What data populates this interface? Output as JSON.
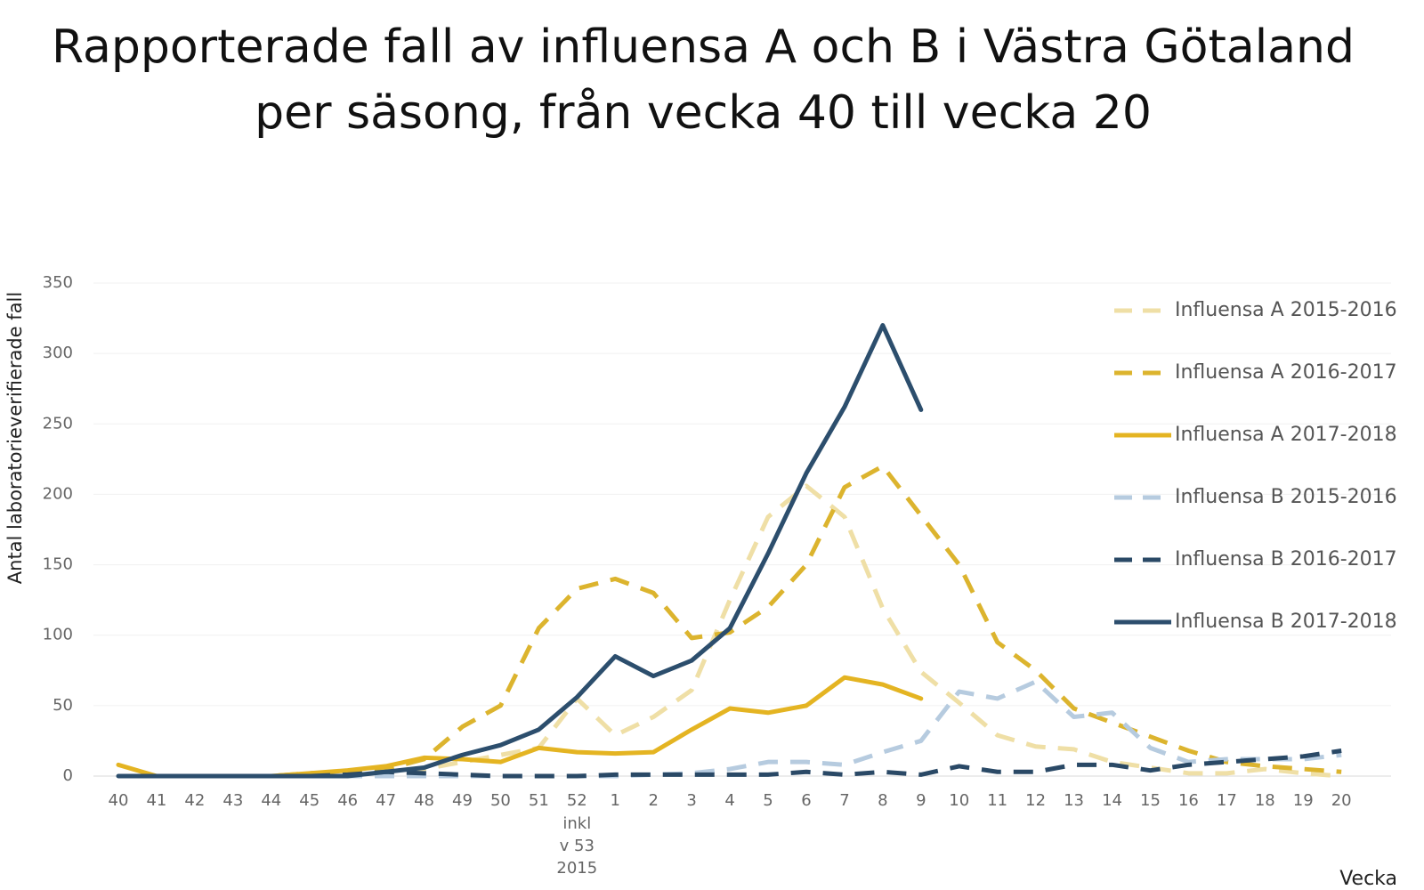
{
  "chart_data": {
    "type": "line",
    "title": [
      "Rapporterade fall av  influensa A och B i Västra Götaland",
      "per säsong, från vecka 40 till vecka 20"
    ],
    "y_label": "Antal laboratorieverifierade fall",
    "x_label": "Vecka",
    "categories": [
      "40",
      "41",
      "42",
      "43",
      "44",
      "45",
      "46",
      "47",
      "48",
      "49",
      "50",
      "51",
      "52",
      "1",
      "2",
      "3",
      "4",
      "5",
      "6",
      "7",
      "8",
      "9",
      "10",
      "11",
      "12",
      "13",
      "14",
      "15",
      "16",
      "17",
      "18",
      "19",
      "20"
    ],
    "category_note": {
      "index": 12,
      "lines": [
        "inkl",
        "v 53",
        "2015"
      ]
    },
    "ylim": [
      0,
      350
    ],
    "yticks": [
      0,
      50,
      100,
      150,
      200,
      250,
      300,
      350
    ],
    "grid": true,
    "legend": "right",
    "series": [
      {
        "name": "Influensa A 2015-2016",
        "color": "#efdfa6",
        "dashed": true,
        "values": [
          0,
          0,
          0,
          0,
          0,
          0,
          1,
          2,
          5,
          10,
          15,
          20,
          55,
          29,
          42,
          61,
          125,
          184,
          206,
          184,
          119,
          74,
          52,
          29,
          21,
          19,
          10,
          6,
          2,
          2,
          5,
          2,
          0
        ]
      },
      {
        "name": "Influensa A 2016-2017",
        "color": "#dcb42e",
        "dashed": true,
        "values": [
          0,
          0,
          0,
          0,
          0,
          2,
          3,
          5,
          12,
          35,
          50,
          105,
          133,
          140,
          130,
          98,
          102,
          120,
          150,
          205,
          220,
          185,
          150,
          95,
          75,
          48,
          38,
          28,
          18,
          10,
          7,
          5,
          3
        ]
      },
      {
        "name": "Influensa A 2017-2018",
        "color": "#e4b422",
        "dashed": false,
        "values": [
          8,
          0,
          0,
          0,
          0,
          2,
          4,
          7,
          13,
          12,
          10,
          20,
          17,
          16,
          17,
          33,
          48,
          45,
          50,
          70,
          65,
          55,
          null,
          null,
          null,
          null,
          null,
          null,
          null,
          null,
          null,
          null,
          null
        ]
      },
      {
        "name": "Influensa B 2015-2016",
        "color": "#b6cbdf",
        "dashed": true,
        "values": [
          0,
          0,
          0,
          0,
          0,
          0,
          0,
          0,
          0,
          0,
          0,
          0,
          0,
          0,
          1,
          2,
          5,
          10,
          10,
          8,
          17,
          25,
          60,
          55,
          67,
          42,
          45,
          20,
          10,
          12,
          12,
          12,
          15
        ]
      },
      {
        "name": "Influensa B 2016-2017",
        "color": "#2a4966",
        "dashed": true,
        "values": [
          0,
          0,
          0,
          0,
          0,
          0,
          1,
          3,
          2,
          1,
          0,
          0,
          0,
          1,
          1,
          1,
          1,
          1,
          3,
          1,
          3,
          1,
          7,
          3,
          3,
          8,
          8,
          4,
          8,
          10,
          12,
          14,
          18
        ]
      },
      {
        "name": "Influensa B 2017-2018",
        "color": "#2c4e6d",
        "dashed": false,
        "values": [
          0,
          0,
          0,
          0,
          0,
          0,
          0,
          3,
          6,
          15,
          22,
          33,
          56,
          85,
          71,
          82,
          105,
          158,
          215,
          262,
          320,
          260,
          null,
          null,
          null,
          null,
          null,
          null,
          null,
          null,
          null,
          null,
          null
        ]
      }
    ]
  }
}
